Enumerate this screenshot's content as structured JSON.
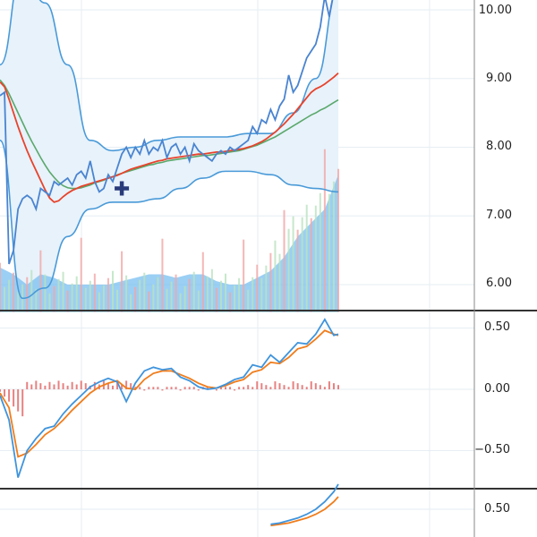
{
  "theme": {
    "background": "#ffffff",
    "grid": "#e6eef3",
    "separator": "#333333",
    "band_fill": "#e7f2fb",
    "band_line": "#4a9ad8",
    "price_line": "#4a84d0",
    "ma_fast": "#e8432b",
    "ma_slow": "#5aa86a",
    "volume_area": "#79bff0",
    "volume_up": "#b9e2bf",
    "volume_down": "#f2a5a5",
    "macd_line": "#3f94dc",
    "signal_line": "#f07d1c",
    "hist_pos": "#e36b6b",
    "crosshair": "#2a3b7a"
  },
  "price_axis": {
    "ticks": [
      "10.00",
      "9.00",
      "8.00",
      "7.00",
      "6.00"
    ],
    "values": [
      10,
      9,
      8,
      7,
      6
    ],
    "range": [
      5.6,
      10.15
    ]
  },
  "macd_axis": {
    "ticks": [
      "0.50",
      "0.00",
      "−0.50"
    ],
    "values": [
      0.5,
      0,
      -0.5
    ],
    "range": [
      -0.78,
      0.62
    ]
  },
  "osc_axis": {
    "ticks": [
      "0.50"
    ],
    "values": [
      0.5
    ],
    "range": [
      0.38,
      0.78
    ]
  },
  "chart_data": [
    {
      "type": "line",
      "panel": "price",
      "x": [
        0,
        1,
        2,
        3,
        4,
        5,
        6,
        7,
        8,
        9,
        10,
        11,
        12,
        13,
        14,
        15,
        16,
        17,
        18,
        19,
        20,
        21,
        22,
        23,
        24,
        25,
        26,
        27,
        28,
        29,
        30,
        31,
        32,
        33,
        34,
        35,
        36,
        37,
        38,
        39,
        40,
        41,
        42,
        43,
        44,
        45,
        46,
        47,
        48,
        49,
        50,
        51,
        52,
        53,
        54,
        55,
        56,
        57,
        58,
        59,
        60,
        61,
        62,
        63,
        64,
        65,
        66,
        67,
        68,
        69,
        70,
        71,
        72,
        73,
        74,
        75
      ],
      "series": [
        {
          "values": [
            8.75,
            8.8,
            6.3,
            6.5,
            7.1,
            7.25,
            7.3,
            7.25,
            7.1,
            7.4,
            7.35,
            7.3,
            7.5,
            7.45,
            7.5,
            7.55,
            7.45,
            7.6,
            7.65,
            7.55,
            7.8,
            7.5,
            7.35,
            7.4,
            7.6,
            7.5,
            7.7,
            7.9,
            8.0,
            7.85,
            8.0,
            7.9,
            8.1,
            7.9,
            8.0,
            7.95,
            8.1,
            7.85,
            8.0,
            8.05,
            7.9,
            8.0,
            7.8,
            8.05,
            7.95,
            7.9,
            7.85,
            7.8,
            7.9,
            7.95,
            7.9,
            8.0,
            7.95,
            8.0,
            8.05,
            8.1,
            8.3,
            8.2,
            8.4,
            8.35,
            8.55,
            8.4,
            8.6,
            8.7,
            9.05,
            8.8,
            8.9,
            9.1,
            9.3,
            9.4,
            9.5,
            9.75,
            10.2,
            9.9,
            10.25,
            10.5
          ]
        },
        {
          "values": [
            8.95,
            8.88,
            8.7,
            8.5,
            8.3,
            8.12,
            7.95,
            7.8,
            7.66,
            7.52,
            7.38,
            7.26,
            7.2,
            7.22,
            7.28,
            7.33,
            7.37,
            7.4,
            7.43,
            7.45,
            7.47,
            7.49,
            7.51,
            7.53,
            7.55,
            7.57,
            7.59,
            7.62,
            7.65,
            7.68,
            7.7,
            7.72,
            7.74,
            7.76,
            7.78,
            7.8,
            7.81,
            7.83,
            7.84,
            7.85,
            7.86,
            7.87,
            7.88,
            7.89,
            7.9,
            7.9,
            7.91,
            7.92,
            7.93,
            7.93,
            7.94,
            7.95,
            7.96,
            7.97,
            7.98,
            8.0,
            8.02,
            8.05,
            8.08,
            8.12,
            8.17,
            8.22,
            8.28,
            8.34,
            8.41,
            8.48,
            8.56,
            8.64,
            8.72,
            8.8,
            8.85,
            8.88,
            8.92,
            8.97,
            9.02,
            9.08
          ]
        },
        {
          "values": [
            8.98,
            8.9,
            8.78,
            8.64,
            8.5,
            8.36,
            8.22,
            8.09,
            7.97,
            7.85,
            7.74,
            7.64,
            7.56,
            7.49,
            7.44,
            7.41,
            7.4,
            7.4,
            7.41,
            7.43,
            7.45,
            7.48,
            7.5,
            7.52,
            7.55,
            7.57,
            7.6,
            7.62,
            7.64,
            7.66,
            7.68,
            7.7,
            7.72,
            7.74,
            7.75,
            7.77,
            7.78,
            7.8,
            7.81,
            7.82,
            7.83,
            7.84,
            7.85,
            7.86,
            7.87,
            7.88,
            7.88,
            7.89,
            7.9,
            7.91,
            7.92,
            7.93,
            7.94,
            7.95,
            7.97,
            7.99,
            8.01,
            8.03,
            8.06,
            8.09,
            8.12,
            8.15,
            8.19,
            8.23,
            8.27,
            8.31,
            8.35,
            8.39,
            8.43,
            8.47,
            8.5,
            8.54,
            8.57,
            8.61,
            8.65,
            8.69
          ]
        }
      ]
    },
    {
      "type": "line",
      "panel": "price-bands",
      "x": [
        0,
        5,
        10,
        15,
        20,
        25,
        30,
        35,
        40,
        45,
        50,
        55,
        60,
        65,
        70,
        75
      ],
      "series": [
        {
          "values": [
            9.2,
            10.6,
            10.1,
            9.2,
            8.1,
            7.95,
            8.0,
            8.1,
            8.15,
            8.15,
            8.15,
            8.2,
            8.2,
            8.5,
            9.0,
            10.3
          ]
        },
        {
          "values": [
            8.1,
            5.8,
            5.95,
            6.7,
            7.1,
            7.2,
            7.2,
            7.25,
            7.4,
            7.55,
            7.65,
            7.65,
            7.6,
            7.45,
            7.4,
            7.35
          ]
        }
      ]
    },
    {
      "type": "bar",
      "panel": "volume",
      "x": [
        0,
        3,
        6,
        9,
        12,
        15,
        18,
        21,
        24,
        27,
        30,
        33,
        36,
        39,
        42,
        45,
        48,
        51,
        54,
        57,
        60,
        63,
        66,
        69,
        72,
        75
      ],
      "values": [
        6.25,
        6.15,
        6.0,
        6.15,
        6.1,
        6.0,
        6.0,
        6.0,
        6.0,
        6.05,
        6.1,
        6.15,
        6.15,
        6.1,
        6.15,
        6.15,
        6.05,
        6.0,
        6.0,
        6.1,
        6.2,
        6.4,
        6.7,
        6.9,
        7.1,
        7.6
      ]
    },
    {
      "type": "line",
      "panel": "macd",
      "x": [
        0,
        2,
        4,
        6,
        8,
        10,
        12,
        14,
        16,
        18,
        20,
        22,
        24,
        26,
        28,
        30,
        32,
        34,
        36,
        38,
        40,
        42,
        44,
        46,
        48,
        50,
        52,
        54,
        56,
        58,
        60,
        62,
        64,
        66,
        68,
        70,
        72,
        74,
        75
      ],
      "series": [
        {
          "values": [
            -0.05,
            -0.25,
            -0.72,
            -0.5,
            -0.4,
            -0.32,
            -0.3,
            -0.2,
            -0.12,
            -0.05,
            0.02,
            0.06,
            0.09,
            0.06,
            -0.1,
            0.05,
            0.15,
            0.18,
            0.16,
            0.17,
            0.1,
            0.07,
            0.02,
            0.0,
            0.01,
            0.04,
            0.08,
            0.1,
            0.2,
            0.18,
            0.28,
            0.22,
            0.3,
            0.38,
            0.37,
            0.45,
            0.57,
            0.44,
            0.45
          ]
        },
        {
          "values": [
            -0.03,
            -0.15,
            -0.55,
            -0.52,
            -0.45,
            -0.37,
            -0.32,
            -0.25,
            -0.17,
            -0.1,
            -0.03,
            0.02,
            0.05,
            0.07,
            0.01,
            0.0,
            0.08,
            0.13,
            0.15,
            0.15,
            0.12,
            0.09,
            0.05,
            0.02,
            0.01,
            0.03,
            0.06,
            0.08,
            0.14,
            0.16,
            0.22,
            0.21,
            0.26,
            0.33,
            0.35,
            0.41,
            0.48,
            0.45,
            0.44
          ]
        }
      ]
    },
    {
      "type": "line",
      "panel": "oscillator",
      "x": [
        60,
        62,
        64,
        66,
        68,
        70,
        72,
        74,
        75
      ],
      "series": [
        {
          "values": [
            0.38,
            0.39,
            0.41,
            0.43,
            0.46,
            0.5,
            0.56,
            0.64,
            0.7
          ]
        },
        {
          "values": [
            0.37,
            0.38,
            0.39,
            0.41,
            0.43,
            0.46,
            0.5,
            0.56,
            0.6
          ]
        }
      ]
    }
  ]
}
